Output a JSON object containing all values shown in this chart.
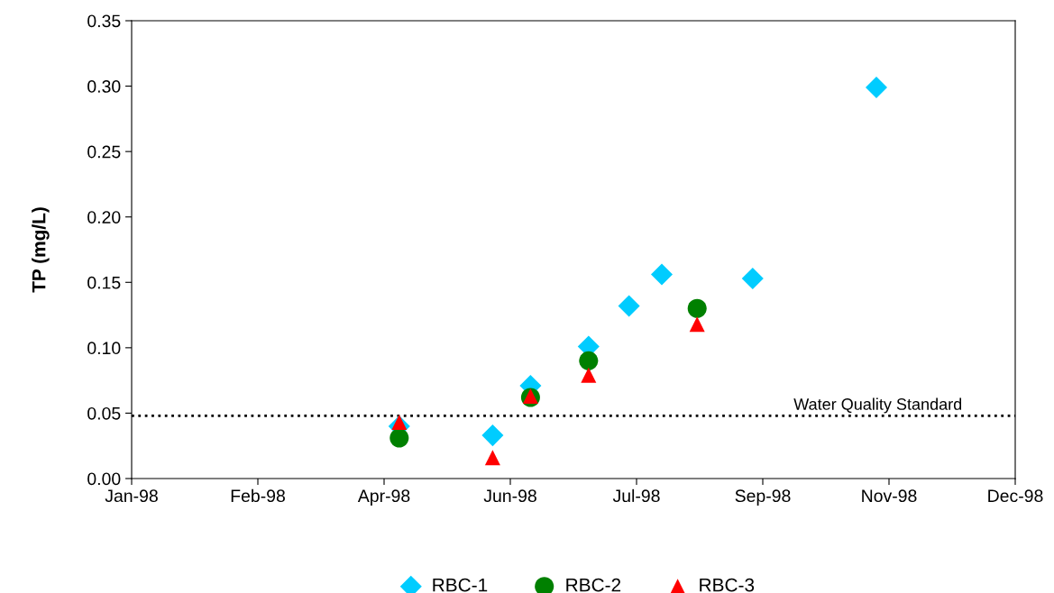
{
  "chart_data": {
    "type": "scatter",
    "ylabel": "TP (mg/L)",
    "xlim": [
      "1998-01-05",
      "1998-12-21"
    ],
    "xticks": [
      {
        "value": "1998-01-05",
        "label": "Jan-98"
      },
      {
        "value": "1998-02-24",
        "label": "Feb-98"
      },
      {
        "value": "1998-04-15",
        "label": "Apr-98"
      },
      {
        "value": "1998-06-04",
        "label": "Jun-98"
      },
      {
        "value": "1998-07-24",
        "label": "Jul-98"
      },
      {
        "value": "1998-09-12",
        "label": "Sep-98"
      },
      {
        "value": "1998-11-01",
        "label": "Nov-98"
      },
      {
        "value": "1998-12-21",
        "label": "Dec-98"
      }
    ],
    "ylim": [
      0,
      0.35
    ],
    "yticks": [
      {
        "value": 0,
        "label": "0.00"
      },
      {
        "value": 0.05,
        "label": "0.05"
      },
      {
        "value": 0.1,
        "label": "0.10"
      },
      {
        "value": 0.15,
        "label": "0.15"
      },
      {
        "value": 0.2,
        "label": "0.20"
      },
      {
        "value": 0.25,
        "label": "0.25"
      },
      {
        "value": 0.3,
        "label": "0.30"
      },
      {
        "value": 0.35,
        "label": "0.35"
      }
    ],
    "series": [
      {
        "name": "RBC-1",
        "color": "#00ccff",
        "marker": "diamond",
        "x": [
          "1998-04-21",
          "1998-05-28",
          "1998-06-12",
          "1998-07-05",
          "1998-07-21",
          "1998-08-03",
          "1998-09-08",
          "1998-10-27"
        ],
        "values": [
          0.04,
          0.033,
          0.071,
          0.101,
          0.132,
          0.156,
          0.153,
          0.299
        ]
      },
      {
        "name": "RBC-2",
        "color": "#008000",
        "marker": "circle",
        "x": [
          "1998-04-21",
          "1998-06-12",
          "1998-07-05",
          "1998-08-17"
        ],
        "values": [
          0.031,
          0.062,
          0.09,
          0.13
        ]
      },
      {
        "name": "RBC-3",
        "color": "#ff0000",
        "marker": "triangle",
        "x": [
          "1998-04-21",
          "1998-05-28",
          "1998-06-12",
          "1998-07-05",
          "1998-08-17"
        ],
        "values": [
          0.043,
          0.016,
          0.063,
          0.079,
          0.118
        ]
      }
    ],
    "ref_lines": [
      {
        "axis": "y",
        "value": 0.048,
        "label": "Water Quality Standard",
        "color": "#000000",
        "line_style": "dotted"
      }
    ],
    "grid": false,
    "legend": "bottom"
  }
}
